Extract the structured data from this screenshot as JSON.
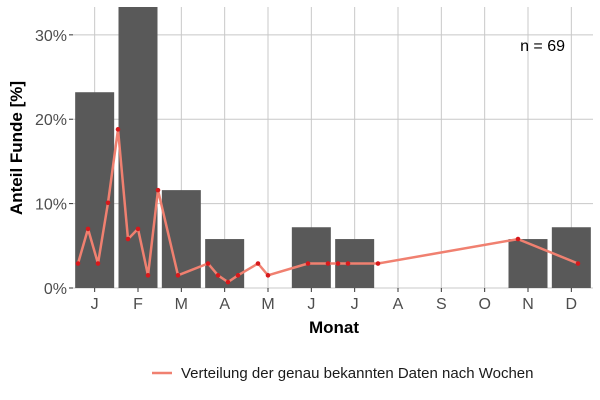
{
  "chart_data": {
    "type": "bar",
    "xlabel": "Monat",
    "ylabel": "Anteil Funde [%]",
    "categories": [
      "J",
      "F",
      "M",
      "A",
      "M",
      "J",
      "J",
      "A",
      "S",
      "O",
      "N",
      "D"
    ],
    "values": [
      23.2,
      33.3,
      11.6,
      5.8,
      0,
      7.2,
      5.8,
      0,
      0,
      0,
      5.8,
      7.2
    ],
    "ylim": [
      0,
      33.3
    ],
    "yticks": [
      0,
      10,
      20,
      30
    ],
    "ytick_labels": [
      "0%",
      "10%",
      "20%",
      "30%"
    ],
    "grid": true,
    "annotation": "n = 69",
    "legend_position": "bottom",
    "line_series": {
      "name": "Verteilung der genau bekannten Daten nach Wochen",
      "x": [
        0.5,
        1.5,
        2.5,
        3.5,
        4.5,
        5.5,
        6.5,
        7.5,
        8.5,
        10.5,
        13.5,
        14.5,
        15.5,
        16.5,
        18.5,
        19.5,
        23.5,
        25.5,
        26.5,
        27.5,
        30.5,
        44.5,
        50.5
      ],
      "values": [
        2.9,
        7.0,
        2.9,
        10.1,
        18.8,
        5.8,
        7.0,
        1.5,
        11.6,
        1.5,
        2.9,
        1.5,
        0.7,
        1.5,
        2.9,
        1.5,
        2.9,
        2.9,
        2.9,
        2.9,
        2.9,
        5.8,
        2.9
      ]
    }
  },
  "colors": {
    "bar": "#595959",
    "line": "#f08070",
    "point": "#d7191c",
    "grid": "#c8c8c8"
  }
}
